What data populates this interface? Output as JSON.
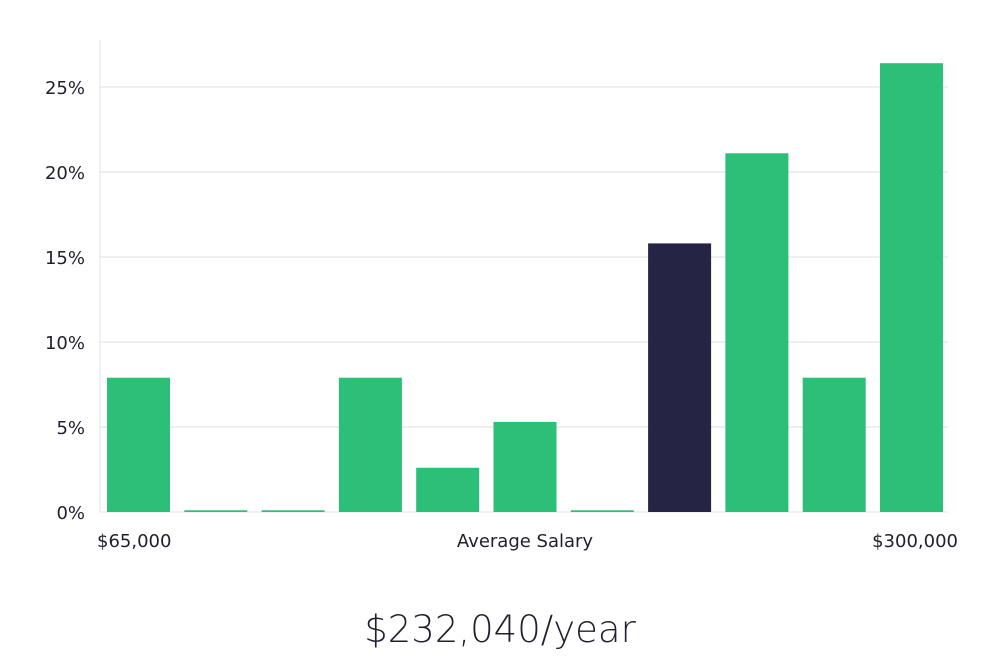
{
  "chart_data": {
    "type": "bar",
    "categories": [
      "1",
      "2",
      "3",
      "4",
      "5",
      "6",
      "7",
      "8",
      "9",
      "10",
      "11"
    ],
    "values": [
      7.9,
      0.1,
      0.1,
      7.9,
      2.6,
      5.3,
      0.1,
      15.8,
      21.1,
      7.9,
      26.4
    ],
    "highlight_index": 7,
    "ylim": [
      0,
      27.5
    ],
    "yticks": [
      0,
      5,
      10,
      15,
      20,
      25
    ],
    "ytick_labels": [
      "0%",
      "5%",
      "10%",
      "15%",
      "20%",
      "25%"
    ],
    "xlabel": "Average Salary",
    "x_min_label": "$65,000",
    "x_max_label": "$300,000",
    "grid": true,
    "colors": {
      "bar": "#2bbf77",
      "highlight": "#262445",
      "grid": "#dcdcdc",
      "axis": "#e3e3e3"
    }
  },
  "summary": {
    "salary_label": "$232,040/year"
  }
}
